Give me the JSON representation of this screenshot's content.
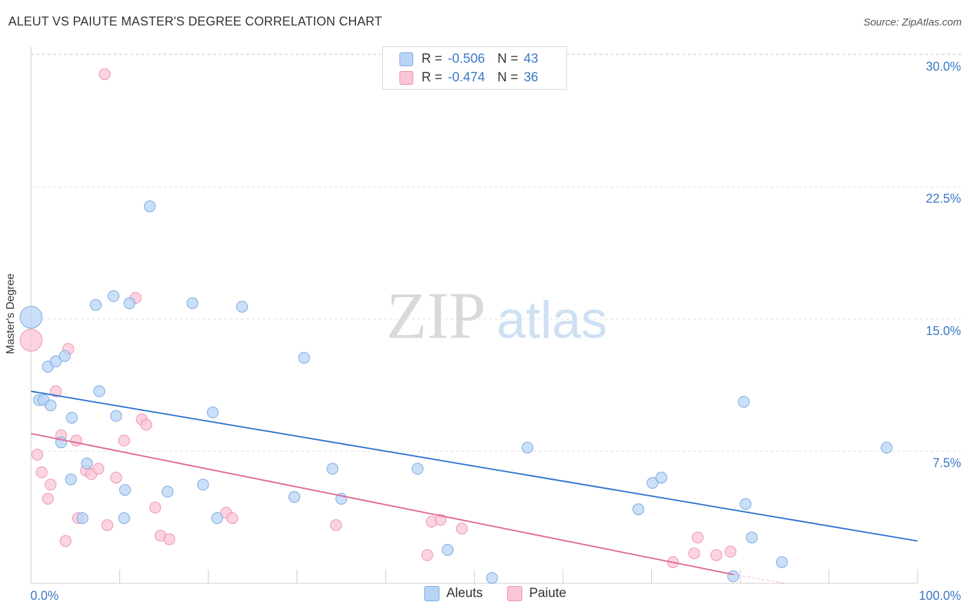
{
  "title": "ALEUT VS PAIUTE MASTER'S DEGREE CORRELATION CHART",
  "source": "Source: ZipAtlas.com",
  "watermark": {
    "zip": "ZIP",
    "atlas": "atlas"
  },
  "legend": {
    "rows": [
      {
        "r_label": "R =",
        "r_value": "-0.506",
        "n_label": "N =",
        "n_value": "43"
      },
      {
        "r_label": "R =",
        "r_value": "-0.474",
        "n_label": "N =",
        "n_value": "36"
      }
    ]
  },
  "bottom_legend": {
    "items": [
      "Aleuts",
      "Paiute"
    ]
  },
  "colors": {
    "aleuts_fill": "#b8d4f5",
    "aleuts_stroke": "#7aa8e0",
    "aleuts_line": "#2f74d0",
    "paiute_fill": "#f9c6d6",
    "paiute_stroke": "#ef92ae",
    "paiute_line": "#e06a94",
    "tick_label": "#3a78c8",
    "grid": "#dddddd"
  },
  "chart_data": {
    "type": "scatter",
    "title": "ALEUT VS PAIUTE MASTER'S DEGREE CORRELATION CHART",
    "xlabel": "",
    "ylabel": "Master's Degree",
    "xlim": [
      0,
      100
    ],
    "ylim": [
      0,
      30.5
    ],
    "x_tick_labels": [
      "0.0%",
      "100.0%"
    ],
    "y_ticks": [
      7.5,
      15.0,
      22.5,
      30.0
    ],
    "y_tick_labels": [
      "7.5%",
      "15.0%",
      "22.5%",
      "30.0%"
    ],
    "grid": "horizontal dashed",
    "legend_position": "top-center",
    "series": [
      {
        "name": "Aleuts",
        "r": -0.506,
        "n": 43,
        "trend": {
          "x": [
            0,
            100
          ],
          "y": [
            10.9,
            2.4
          ]
        },
        "points": [
          {
            "x": 0.0,
            "y": 15.1,
            "s": 16
          },
          {
            "x": 0.9,
            "y": 10.4
          },
          {
            "x": 1.4,
            "y": 10.4
          },
          {
            "x": 1.9,
            "y": 12.3
          },
          {
            "x": 2.2,
            "y": 10.1
          },
          {
            "x": 2.8,
            "y": 12.6
          },
          {
            "x": 3.4,
            "y": 8.0
          },
          {
            "x": 3.8,
            "y": 12.9
          },
          {
            "x": 4.5,
            "y": 5.9
          },
          {
            "x": 4.6,
            "y": 9.4
          },
          {
            "x": 5.8,
            "y": 3.7
          },
          {
            "x": 6.3,
            "y": 6.8
          },
          {
            "x": 7.3,
            "y": 15.8
          },
          {
            "x": 7.7,
            "y": 10.9
          },
          {
            "x": 9.3,
            "y": 16.3
          },
          {
            "x": 9.6,
            "y": 9.5
          },
          {
            "x": 10.5,
            "y": 3.7
          },
          {
            "x": 10.6,
            "y": 5.3
          },
          {
            "x": 11.1,
            "y": 15.9
          },
          {
            "x": 13.4,
            "y": 21.4
          },
          {
            "x": 15.4,
            "y": 5.2
          },
          {
            "x": 18.2,
            "y": 15.9
          },
          {
            "x": 19.4,
            "y": 5.6
          },
          {
            "x": 20.5,
            "y": 9.7
          },
          {
            "x": 21.0,
            "y": 3.7
          },
          {
            "x": 23.8,
            "y": 15.7
          },
          {
            "x": 29.7,
            "y": 4.9
          },
          {
            "x": 30.8,
            "y": 12.8
          },
          {
            "x": 34.0,
            "y": 6.5
          },
          {
            "x": 35.0,
            "y": 4.8
          },
          {
            "x": 43.6,
            "y": 6.5
          },
          {
            "x": 47.0,
            "y": 1.9
          },
          {
            "x": 52.0,
            "y": 0.3
          },
          {
            "x": 56.0,
            "y": 7.7
          },
          {
            "x": 68.5,
            "y": 4.2
          },
          {
            "x": 70.1,
            "y": 5.7
          },
          {
            "x": 71.1,
            "y": 6.0
          },
          {
            "x": 79.2,
            "y": 0.4
          },
          {
            "x": 80.4,
            "y": 10.3
          },
          {
            "x": 80.6,
            "y": 4.5
          },
          {
            "x": 81.3,
            "y": 2.6
          },
          {
            "x": 84.7,
            "y": 1.2
          },
          {
            "x": 96.5,
            "y": 7.7
          }
        ]
      },
      {
        "name": "Paiute",
        "r": -0.474,
        "n": 36,
        "trend": {
          "x": [
            0,
            79.2
          ],
          "y": [
            8.5,
            0.5
          ]
        },
        "trend_ext": {
          "x": [
            79.2,
            85.0
          ],
          "y": [
            0.5,
            0.0
          ]
        },
        "points": [
          {
            "x": 0.0,
            "y": 13.8,
            "s": 16
          },
          {
            "x": 0.7,
            "y": 7.3
          },
          {
            "x": 1.2,
            "y": 6.3
          },
          {
            "x": 1.9,
            "y": 4.8
          },
          {
            "x": 2.2,
            "y": 5.6
          },
          {
            "x": 2.8,
            "y": 10.9
          },
          {
            "x": 3.4,
            "y": 8.4
          },
          {
            "x": 3.9,
            "y": 2.4
          },
          {
            "x": 4.2,
            "y": 13.3
          },
          {
            "x": 5.1,
            "y": 8.1
          },
          {
            "x": 5.3,
            "y": 3.7
          },
          {
            "x": 6.2,
            "y": 6.4
          },
          {
            "x": 6.8,
            "y": 6.2
          },
          {
            "x": 7.6,
            "y": 6.5
          },
          {
            "x": 8.3,
            "y": 28.9
          },
          {
            "x": 8.6,
            "y": 3.3
          },
          {
            "x": 9.6,
            "y": 6.0
          },
          {
            "x": 10.5,
            "y": 8.1
          },
          {
            "x": 11.8,
            "y": 16.2
          },
          {
            "x": 12.5,
            "y": 9.3
          },
          {
            "x": 13.0,
            "y": 9.0
          },
          {
            "x": 14.0,
            "y": 4.3
          },
          {
            "x": 14.6,
            "y": 2.7
          },
          {
            "x": 15.6,
            "y": 2.5
          },
          {
            "x": 22.0,
            "y": 4.0
          },
          {
            "x": 22.7,
            "y": 3.7
          },
          {
            "x": 34.4,
            "y": 3.3
          },
          {
            "x": 44.7,
            "y": 1.6
          },
          {
            "x": 45.2,
            "y": 3.5
          },
          {
            "x": 46.2,
            "y": 3.6
          },
          {
            "x": 48.6,
            "y": 3.1
          },
          {
            "x": 72.4,
            "y": 1.2
          },
          {
            "x": 75.2,
            "y": 2.6
          },
          {
            "x": 74.8,
            "y": 1.7
          },
          {
            "x": 77.3,
            "y": 1.6
          },
          {
            "x": 78.9,
            "y": 1.8
          }
        ]
      }
    ]
  }
}
